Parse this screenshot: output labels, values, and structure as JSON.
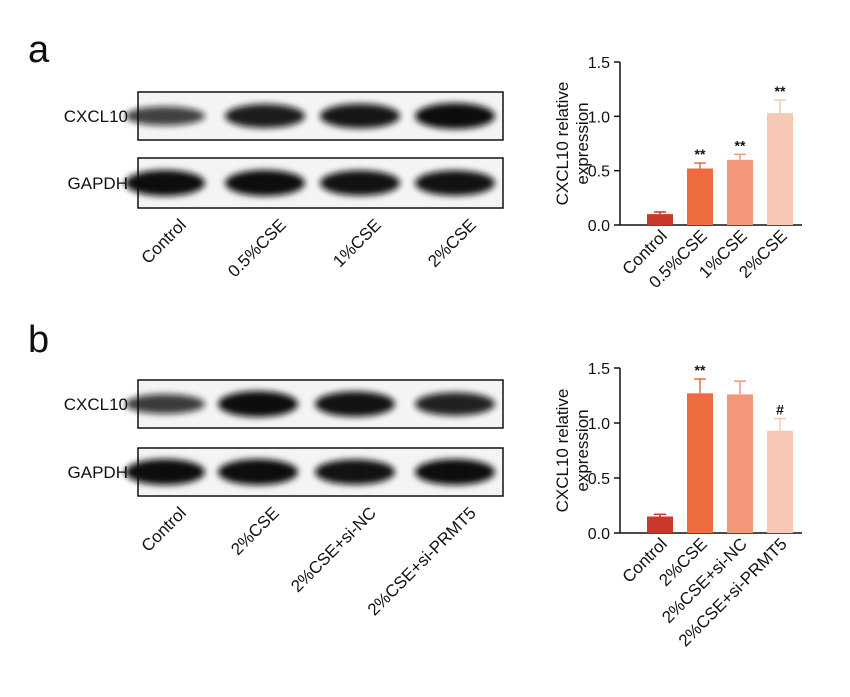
{
  "panels": [
    {
      "label": "a",
      "blot_rows": [
        "CXCL10",
        "GAPDH"
      ],
      "lanes": [
        "Control",
        "0.5%CSE",
        "1%CSE",
        "2%CSE"
      ]
    },
    {
      "label": "b",
      "blot_rows": [
        "CXCL10",
        "GAPDH"
      ],
      "lanes": [
        "Control",
        "2%CSE",
        "2%CSE+si-NC",
        "2%CSE+si-PRMT5"
      ]
    }
  ],
  "chart_data": [
    {
      "type": "bar",
      "y_label": [
        "CXCL10 relative",
        "expression"
      ],
      "categories": [
        "Control",
        "0.5%CSE",
        "1%CSE",
        "2%CSE"
      ],
      "values": [
        0.1,
        0.52,
        0.6,
        1.03
      ],
      "errors": [
        0.02,
        0.05,
        0.05,
        0.12
      ],
      "annotations": [
        null,
        "**",
        "**",
        "**"
      ],
      "colors": [
        "#c8392b",
        "#ee6a3f",
        "#f2977a",
        "#f8c8b6"
      ],
      "ylim": [
        0,
        1.5
      ],
      "yticks": [
        {
          "value": 0,
          "label": "0.0"
        },
        0.5,
        {
          "value": 1,
          "label": "1.0"
        },
        1.5
      ]
    },
    {
      "type": "bar",
      "y_label": [
        "CXCL10 relative",
        "expression"
      ],
      "categories": [
        "Control",
        "2%CSE",
        "2%CSE+si-NC",
        "2%CSE+si-PRMT5"
      ],
      "values": [
        0.15,
        1.27,
        1.26,
        0.93
      ],
      "errors": [
        0.02,
        0.13,
        0.12,
        0.11
      ],
      "annotations": [
        null,
        "**",
        null,
        "#"
      ],
      "colors": [
        "#c8392b",
        "#ee6a3f",
        "#f2977a",
        "#f8c8b6"
      ],
      "ylim": [
        0,
        1.5
      ],
      "yticks": [
        {
          "value": 0,
          "label": "0.0"
        },
        0.5,
        {
          "value": 1,
          "label": "1.0"
        },
        1.5
      ]
    }
  ]
}
